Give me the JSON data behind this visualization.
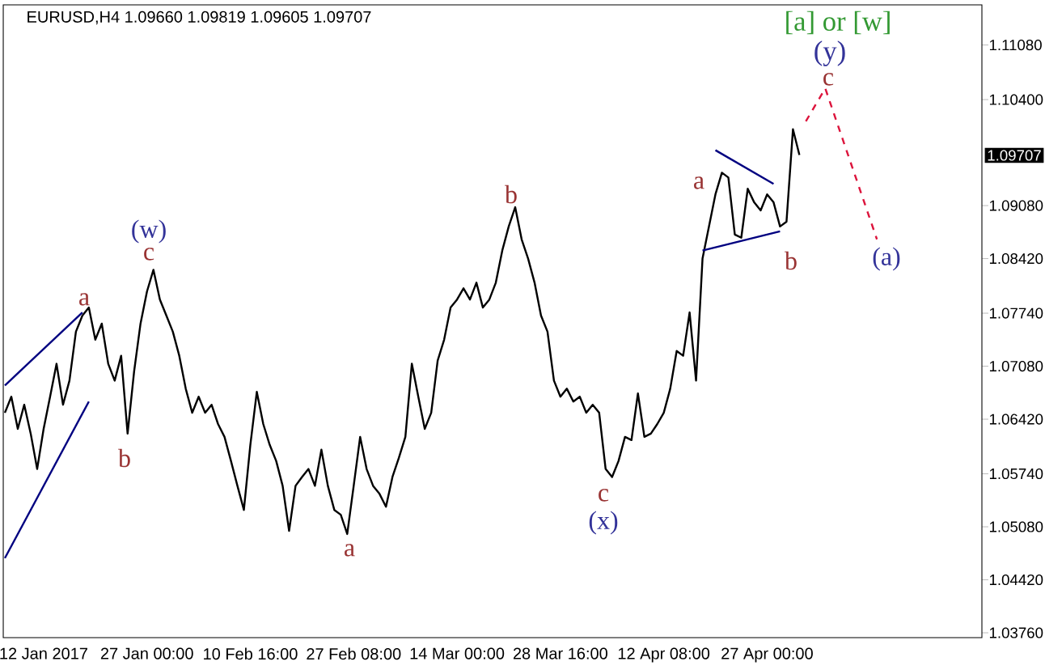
{
  "chart_data": {
    "type": "line",
    "title": "EURUSD,H4  1.09660 1.09819 1.09605 1.09707",
    "ylim": [
      1.037,
      1.1158
    ],
    "categories": [
      null,
      null,
      null,
      null,
      null,
      null,
      "12 Jan 2017",
      null,
      null,
      null,
      null,
      null,
      null,
      null,
      null,
      null,
      null,
      null,
      null,
      null,
      null,
      null,
      "27 Jan 00:00",
      null,
      null,
      null,
      null,
      null,
      null,
      null,
      null,
      null,
      null,
      null,
      null,
      null,
      null,
      null,
      "10 Feb 16:00",
      null,
      null,
      null,
      null,
      null,
      null,
      null,
      null,
      null,
      null,
      null,
      null,
      null,
      null,
      null,
      "27 Feb 08:00",
      null,
      null,
      null,
      null,
      null,
      null,
      null,
      null,
      null,
      null,
      null,
      null,
      null,
      null,
      null,
      "14 Mar 00:00",
      null,
      null,
      null,
      null,
      null,
      null,
      null,
      null,
      null,
      null,
      null,
      null,
      null,
      null,
      null,
      "28 Mar 16:00",
      null,
      null,
      null,
      null,
      null,
      null,
      null,
      null,
      null,
      null,
      null,
      null,
      null,
      null,
      null,
      "12 Apr 08:00",
      null,
      null,
      null,
      null,
      null,
      null,
      null,
      null,
      null,
      null,
      null,
      null,
      null,
      null,
      null,
      "27 Apr 00:00",
      null,
      null,
      null,
      null,
      null,
      null,
      null,
      null,
      null,
      null,
      null,
      null,
      null,
      null,
      null,
      null,
      null,
      null,
      null,
      null,
      null,
      null,
      null,
      null,
      null,
      null,
      null,
      null,
      null,
      null,
      null,
      null,
      null
    ],
    "yticks": [
      {
        "value": 1.0376,
        "label": "1.03760"
      },
      {
        "value": 1.0442,
        "label": "1.04420"
      },
      {
        "value": 1.0508,
        "label": "1.05080"
      },
      {
        "value": 1.0574,
        "label": "1.05740"
      },
      {
        "value": 1.0642,
        "label": "1.06420"
      },
      {
        "value": 1.0708,
        "label": "1.07080"
      },
      {
        "value": 1.0774,
        "label": "1.07740"
      },
      {
        "value": 1.0842,
        "label": "1.08420"
      },
      {
        "value": 1.0908,
        "label": "1.09080"
      },
      {
        "value": 1.104,
        "label": "1.10400"
      },
      {
        "value": 1.1108,
        "label": "1.11080"
      }
    ],
    "series": [
      {
        "color": "#000000",
        "line_style": "solid",
        "values": [
          1.065,
          1.067,
          1.063,
          1.066,
          1.0624,
          1.058,
          1.063,
          1.067,
          1.0711,
          1.066,
          1.069,
          1.0751,
          1.0771,
          1.0781,
          1.0741,
          1.0761,
          1.0711,
          1.069,
          1.0721,
          1.0624,
          1.0701,
          1.0761,
          1.0801,
          1.0828,
          1.0791,
          1.0771,
          1.0751,
          1.0721,
          1.068,
          1.065,
          1.067,
          1.065,
          1.066,
          1.0636,
          1.062,
          1.059,
          1.0559,
          1.0529,
          1.061,
          1.0676,
          1.0636,
          1.061,
          1.059,
          1.0559,
          1.0503,
          1.0559,
          1.057,
          1.058,
          1.0559,
          1.0604,
          1.0559,
          1.0529,
          1.0523,
          1.0499,
          1.0559,
          1.062,
          1.058,
          1.0559,
          1.0549,
          1.0533,
          1.057,
          1.0594,
          1.062,
          1.0711,
          1.067,
          1.063,
          1.065,
          1.0715,
          1.0741,
          1.0781,
          1.0791,
          1.0805,
          1.0791,
          1.0812,
          1.0781,
          1.0791,
          1.0812,
          1.0852,
          1.0882,
          1.0906,
          1.0866,
          1.0842,
          1.0812,
          1.0771,
          1.0751,
          1.069,
          1.067,
          1.068,
          1.0664,
          1.067,
          1.065,
          1.066,
          1.065,
          1.058,
          1.057,
          1.059,
          1.062,
          1.0616,
          1.0674,
          1.062,
          1.0624,
          1.0636,
          1.065,
          1.068,
          1.0727,
          1.0721,
          1.0775,
          1.069,
          1.0842,
          1.0882,
          1.0922,
          1.0949,
          1.0943,
          1.0872,
          1.0868,
          1.0929,
          1.0912,
          1.0902,
          1.0922,
          1.0912,
          1.0882,
          1.0888,
          1.1003,
          1.0971,
          null,
          null,
          null,
          null,
          null,
          null,
          null,
          null,
          null,
          null,
          null,
          null,
          null,
          null,
          null,
          null,
          null,
          null,
          null,
          null,
          null,
          null,
          null,
          null,
          null,
          null,
          null,
          null
        ]
      },
      {
        "color": "#dc143c",
        "line_style": "dashed",
        "values": [
          null,
          null,
          null,
          null,
          null,
          null,
          null,
          null,
          null,
          null,
          null,
          null,
          null,
          null,
          null,
          null,
          null,
          null,
          null,
          null,
          null,
          null,
          null,
          null,
          null,
          null,
          null,
          null,
          null,
          null,
          null,
          null,
          null,
          null,
          null,
          null,
          null,
          null,
          null,
          null,
          null,
          null,
          null,
          null,
          null,
          null,
          null,
          null,
          null,
          null,
          null,
          null,
          null,
          null,
          null,
          null,
          null,
          null,
          null,
          null,
          null,
          null,
          null,
          null,
          null,
          null,
          null,
          null,
          null,
          null,
          null,
          null,
          null,
          null,
          null,
          null,
          null,
          null,
          null,
          null,
          null,
          null,
          null,
          null,
          null,
          null,
          null,
          null,
          null,
          null,
          null,
          null,
          null,
          null,
          null,
          null,
          null,
          null,
          null,
          null,
          null,
          null,
          null,
          null,
          null,
          null,
          null,
          null,
          null,
          null,
          null,
          null,
          null,
          null,
          null,
          null,
          null,
          null,
          null,
          null,
          null,
          null,
          null,
          null,
          1.1013,
          null,
          null,
          1.1054,
          null,
          null,
          null,
          null,
          null,
          null,
          null,
          1.0866,
          null,
          null,
          null,
          null,
          null,
          null,
          null,
          null,
          null,
          null,
          null,
          null,
          null,
          null,
          null,
          null
        ]
      },
      {
        "color": "#000080",
        "line_style": "solid",
        "values": [
          1.0684,
          null,
          null,
          null,
          null,
          null,
          null,
          null,
          null,
          null,
          null,
          null,
          1.0775,
          null,
          null,
          null,
          null,
          null,
          null,
          null,
          null,
          null,
          null,
          null,
          null,
          null,
          null,
          null,
          null,
          null,
          null,
          null,
          null,
          null,
          null,
          null,
          null,
          null,
          null,
          null,
          null,
          null,
          null,
          null,
          null,
          null,
          null,
          null,
          null,
          null,
          null,
          null,
          null,
          null,
          null,
          null,
          null,
          null,
          null,
          null,
          null,
          null,
          null,
          null,
          null,
          null,
          null,
          null,
          null,
          null,
          null,
          null,
          null,
          null,
          null,
          null,
          null,
          null,
          null,
          null,
          null,
          null,
          null,
          null,
          null,
          null,
          null,
          null,
          null,
          null,
          null,
          null,
          null,
          null,
          null,
          null,
          null,
          null,
          null,
          null,
          null,
          null,
          null,
          null,
          null,
          null,
          null,
          null,
          null,
          null,
          null,
          null,
          null,
          null,
          null,
          null,
          null,
          null,
          null,
          null,
          null,
          null,
          null,
          null,
          null,
          null,
          null,
          null,
          null,
          null,
          null,
          null,
          null,
          null,
          null,
          null,
          null,
          null,
          null,
          null,
          null,
          null,
          null,
          null,
          null,
          null,
          null,
          null,
          null,
          null,
          null,
          null
        ]
      },
      {
        "color": "#000080",
        "line_style": "solid",
        "values": [
          1.0469,
          null,
          null,
          null,
          null,
          null,
          null,
          null,
          null,
          null,
          null,
          null,
          null,
          1.0664,
          null,
          null,
          null,
          null,
          null,
          null,
          null,
          null,
          null,
          null,
          null,
          null,
          null,
          null,
          null,
          null,
          null,
          null,
          null,
          null,
          null,
          null,
          null,
          null,
          null,
          null,
          null,
          null,
          null,
          null,
          null,
          null,
          null,
          null,
          null,
          null,
          null,
          null,
          null,
          null,
          null,
          null,
          null,
          null,
          null,
          null,
          null,
          null,
          null,
          null,
          null,
          null,
          null,
          null,
          null,
          null,
          null,
          null,
          null,
          null,
          null,
          null,
          null,
          null,
          null,
          null,
          null,
          null,
          null,
          null,
          null,
          null,
          null,
          null,
          null,
          null,
          null,
          null,
          null,
          null,
          null,
          null,
          null,
          null,
          null,
          null,
          null,
          null,
          null,
          null,
          null,
          null,
          null,
          null,
          null,
          null,
          null,
          null,
          null,
          null,
          null,
          null,
          null,
          null,
          null,
          null,
          null,
          null,
          null,
          null,
          null,
          null,
          null,
          null,
          null,
          null,
          null,
          null,
          null,
          null,
          null,
          null,
          null,
          null,
          null,
          null,
          null,
          null,
          null,
          null,
          null,
          null,
          null,
          null,
          null,
          null,
          null,
          null
        ]
      },
      {
        "color": "#000080",
        "line_style": "solid",
        "values": [
          null,
          null,
          null,
          null,
          null,
          null,
          null,
          null,
          null,
          null,
          null,
          null,
          null,
          null,
          null,
          null,
          null,
          null,
          null,
          null,
          null,
          null,
          null,
          null,
          null,
          null,
          null,
          null,
          null,
          null,
          null,
          null,
          null,
          null,
          null,
          null,
          null,
          null,
          null,
          null,
          null,
          null,
          null,
          null,
          null,
          null,
          null,
          null,
          null,
          null,
          null,
          null,
          null,
          null,
          null,
          null,
          null,
          null,
          null,
          null,
          null,
          null,
          null,
          null,
          null,
          null,
          null,
          null,
          null,
          null,
          null,
          null,
          null,
          null,
          null,
          null,
          null,
          null,
          null,
          null,
          null,
          null,
          null,
          null,
          null,
          null,
          null,
          null,
          null,
          null,
          null,
          null,
          null,
          null,
          null,
          null,
          null,
          null,
          null,
          null,
          null,
          null,
          null,
          null,
          null,
          null,
          null,
          null,
          null,
          null,
          1.0977,
          null,
          null,
          null,
          null,
          null,
          null,
          null,
          null,
          1.0935,
          null,
          null,
          null,
          null,
          null,
          null,
          null,
          null,
          null,
          null,
          null,
          null,
          null,
          null,
          null,
          null,
          null,
          null,
          null,
          null,
          null,
          null,
          null,
          null,
          null,
          null,
          null,
          null,
          null,
          null,
          null,
          null
        ]
      },
      {
        "color": "#000080",
        "line_style": "solid",
        "values": [
          null,
          null,
          null,
          null,
          null,
          null,
          null,
          null,
          null,
          null,
          null,
          null,
          null,
          null,
          null,
          null,
          null,
          null,
          null,
          null,
          null,
          null,
          null,
          null,
          null,
          null,
          null,
          null,
          null,
          null,
          null,
          null,
          null,
          null,
          null,
          null,
          null,
          null,
          null,
          null,
          null,
          null,
          null,
          null,
          null,
          null,
          null,
          null,
          null,
          null,
          null,
          null,
          null,
          null,
          null,
          null,
          null,
          null,
          null,
          null,
          null,
          null,
          null,
          null,
          null,
          null,
          null,
          null,
          null,
          null,
          null,
          null,
          null,
          null,
          null,
          null,
          null,
          null,
          null,
          null,
          null,
          null,
          null,
          null,
          null,
          null,
          null,
          null,
          null,
          null,
          null,
          null,
          null,
          null,
          null,
          null,
          null,
          null,
          null,
          null,
          null,
          null,
          null,
          null,
          null,
          null,
          null,
          null,
          1.0852,
          null,
          null,
          null,
          null,
          null,
          null,
          null,
          null,
          null,
          null,
          null,
          1.0876,
          null,
          null,
          null,
          null,
          null,
          null,
          null,
          null,
          null,
          null,
          null,
          null,
          null,
          null,
          null,
          null,
          null,
          null,
          null,
          null,
          null,
          null,
          null,
          null,
          null,
          null,
          null,
          null,
          null,
          null,
          null
        ]
      }
    ],
    "annotations": [
      "a",
      "(w)",
      "c",
      "b",
      "a",
      "b",
      "c",
      "(x)",
      "a",
      "b",
      "c",
      "(y)",
      "[a] or [w]",
      "(a)",
      "1.09707"
    ]
  }
}
